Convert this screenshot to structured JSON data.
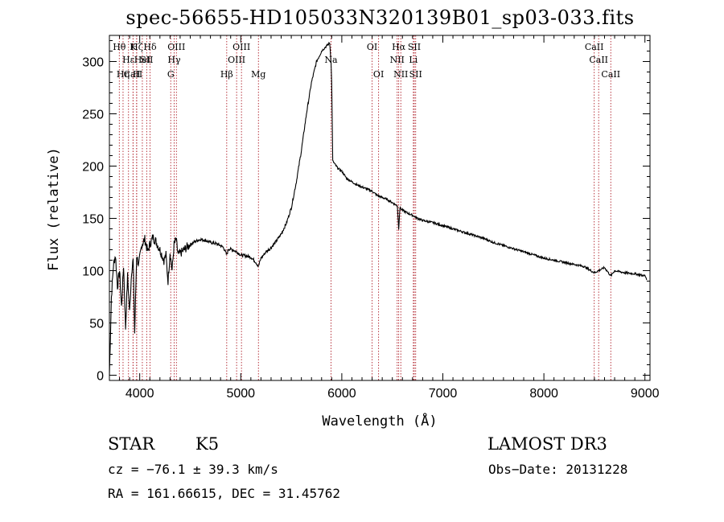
{
  "chart_data": {
    "type": "line",
    "title": "spec-56655-HD105033N320139B01_sp03-033.fits",
    "xlabel": "Wavelength (Å)",
    "ylabel": "Flux (relative)",
    "xlim": [
      3700,
      9050
    ],
    "ylim": [
      -5,
      325
    ],
    "xticks": [
      4000,
      5000,
      6000,
      7000,
      8000,
      9000
    ],
    "yticks": [
      0,
      50,
      100,
      150,
      200,
      250,
      300
    ],
    "spectrum": {
      "name": "flux",
      "x": [
        3700,
        3720,
        3740,
        3760,
        3780,
        3800,
        3820,
        3840,
        3860,
        3880,
        3900,
        3920,
        3935,
        3950,
        3970,
        3990,
        4020,
        4050,
        4080,
        4100,
        4130,
        4160,
        4200,
        4240,
        4260,
        4280,
        4300,
        4320,
        4340,
        4360,
        4380,
        4420,
        4460,
        4500,
        4550,
        4600,
        4650,
        4700,
        4750,
        4800,
        4830,
        4861,
        4880,
        4920,
        4960,
        5000,
        5050,
        5100,
        5150,
        5175,
        5200,
        5250,
        5300,
        5350,
        5400,
        5450,
        5500,
        5550,
        5600,
        5650,
        5700,
        5750,
        5800,
        5850,
        5880,
        5893,
        5900,
        5910,
        5930,
        5960,
        6000,
        6050,
        6100,
        6150,
        6200,
        6250,
        6300,
        6350,
        6400,
        6450,
        6500,
        6550,
        6563,
        6575,
        6600,
        6650,
        6700,
        6750,
        6800,
        6900,
        7000,
        7100,
        7200,
        7300,
        7400,
        7500,
        7600,
        7700,
        7800,
        7900,
        8000,
        8100,
        8200,
        8300,
        8400,
        8498,
        8542,
        8600,
        8662,
        8700,
        8800,
        8900,
        8950,
        9000,
        9020
      ],
      "y": [
        0,
        75,
        105,
        115,
        85,
        100,
        65,
        105,
        45,
        95,
        60,
        100,
        110,
        40,
        115,
        105,
        125,
        130,
        118,
        125,
        132,
        128,
        120,
        110,
        115,
        90,
        118,
        100,
        125,
        130,
        115,
        118,
        122,
        125,
        128,
        130,
        129,
        127,
        126,
        124,
        122,
        115,
        121,
        120,
        118,
        115,
        114,
        113,
        108,
        104,
        112,
        118,
        122,
        128,
        135,
        145,
        160,
        185,
        215,
        250,
        280,
        300,
        310,
        315,
        318,
        300,
        280,
        205,
        202,
        198,
        195,
        188,
        185,
        182,
        180,
        178,
        176,
        172,
        170,
        168,
        165,
        162,
        140,
        160,
        158,
        155,
        153,
        150,
        148,
        146,
        143,
        140,
        137,
        134,
        131,
        127,
        124,
        121,
        118,
        115,
        112,
        110,
        108,
        106,
        104,
        98,
        100,
        103,
        95,
        100,
        98,
        97,
        96,
        95,
        92
      ]
    },
    "lines": [
      {
        "label": "CaII",
        "wave": 3934,
        "row": 3
      },
      {
        "label": "Hθ",
        "wave": 3798,
        "row": 1
      },
      {
        "label": "Hε",
        "wave": 3889,
        "row": 2
      },
      {
        "label": "Hη",
        "wave": 3835,
        "row": 3
      },
      {
        "label": "Hζ",
        "wave": 3970,
        "row": 1
      },
      {
        "label": "HeI",
        "wave": 4026,
        "row": 2
      },
      {
        "label": "K",
        "wave": 3934,
        "row": 1
      },
      {
        "label": "H",
        "wave": 3969,
        "row": 3
      },
      {
        "label": "Hδ",
        "wave": 4102,
        "row": 1
      },
      {
        "label": "SII",
        "wave": 4069,
        "row": 2
      },
      {
        "label": "OIII",
        "wave": 4363,
        "row": 1
      },
      {
        "label": "Hγ",
        "wave": 4341,
        "row": 2
      },
      {
        "label": "G",
        "wave": 4307,
        "row": 3
      },
      {
        "label": "Hβ",
        "wave": 4861,
        "row": 3
      },
      {
        "label": "OIII",
        "wave": 5007,
        "row": 1
      },
      {
        "label": "OIII",
        "wave": 4959,
        "row": 2
      },
      {
        "label": "Mg",
        "wave": 5175,
        "row": 3
      },
      {
        "label": "Na",
        "wave": 5893,
        "row": 2
      },
      {
        "label": "OI",
        "wave": 6300,
        "row": 1
      },
      {
        "label": "OI",
        "wave": 6364,
        "row": 3
      },
      {
        "label": "Hα",
        "wave": 6563,
        "row": 1
      },
      {
        "label": "NII",
        "wave": 6548,
        "row": 2
      },
      {
        "label": "NII",
        "wave": 6584,
        "row": 3
      },
      {
        "label": "SII",
        "wave": 6717,
        "row": 1
      },
      {
        "label": "Li",
        "wave": 6708,
        "row": 2
      },
      {
        "label": "SII",
        "wave": 6731,
        "row": 3
      },
      {
        "label": "CaII",
        "wave": 8498,
        "row": 1
      },
      {
        "label": "CaII",
        "wave": 8542,
        "row": 2
      },
      {
        "label": "CaII",
        "wave": 8662,
        "row": 3
      }
    ]
  },
  "footer": {
    "object_class": "STAR",
    "subclass": "K5",
    "survey": "LAMOST DR3",
    "cz": "cz = −76.1 ± 39.3 km/s",
    "obs_date": "Obs−Date: 20131228",
    "radec": "RA = 161.66615, DEC =  31.45762"
  },
  "colors": {
    "spectrum": "#000000",
    "line_marker": "#b0202a",
    "axis": "#000000"
  }
}
